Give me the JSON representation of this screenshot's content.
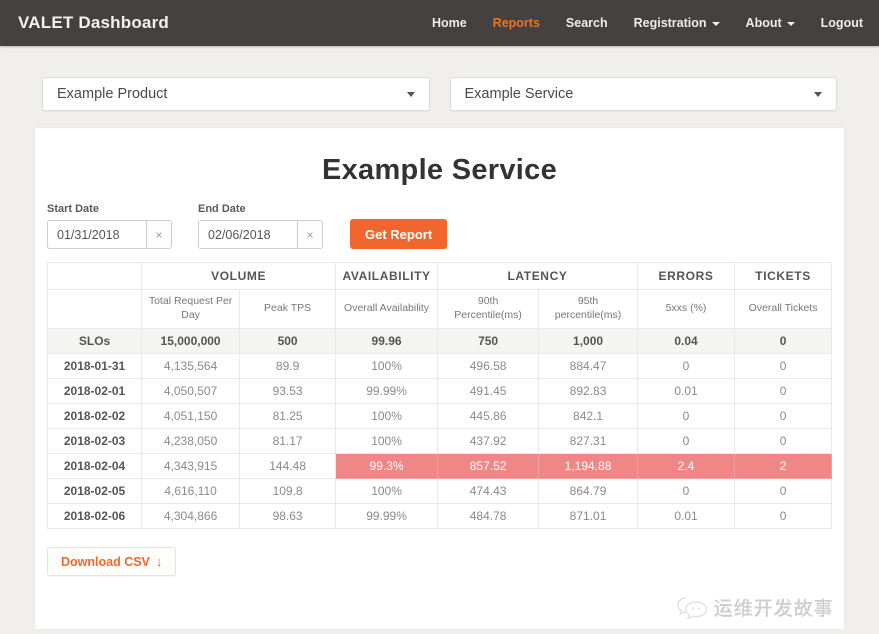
{
  "navbar": {
    "brand": "VALET Dashboard",
    "items": [
      {
        "label": "Home",
        "active": false,
        "caret": false
      },
      {
        "label": "Reports",
        "active": true,
        "caret": false
      },
      {
        "label": "Search",
        "active": false,
        "caret": false
      },
      {
        "label": "Registration",
        "active": false,
        "caret": true
      },
      {
        "label": "About",
        "active": false,
        "caret": true
      },
      {
        "label": "Logout",
        "active": false,
        "caret": false
      }
    ]
  },
  "filters": {
    "product": "Example Product",
    "service": "Example Service"
  },
  "report": {
    "title": "Example Service",
    "start_date_label": "Start Date",
    "end_date_label": "End Date",
    "start_date": "01/31/2018",
    "end_date": "02/06/2018",
    "clear_symbol": "×",
    "get_report_label": "Get Report",
    "download_csv_label": "Download CSV",
    "download_arrow": "↓"
  },
  "table": {
    "groups": [
      {
        "label": "",
        "span": 1
      },
      {
        "label": "VOLUME",
        "span": 2
      },
      {
        "label": "AVAILABILITY",
        "span": 1
      },
      {
        "label": "LATENCY",
        "span": 2
      },
      {
        "label": "ERRORS",
        "span": 1
      },
      {
        "label": "TICKETS",
        "span": 1
      }
    ],
    "columns": [
      "",
      "Total Request Per Day",
      "Peak TPS",
      "Overall Availability",
      "90th Percentile(ms)",
      "95th percentile(ms)",
      "5xxs (%)",
      "Overall Tickets"
    ],
    "col_widths": [
      "12%",
      "12.5%",
      "12.25%",
      "13%",
      "12.9%",
      "12.6%",
      "12.4%",
      "12.35%"
    ],
    "rows": [
      {
        "label": "SLOs",
        "slo": true,
        "cells": [
          "15,000,000",
          "500",
          "99.96",
          "750",
          "1,000",
          "0.04",
          "0"
        ]
      },
      {
        "label": "2018-01-31",
        "slo": false,
        "cells": [
          "4,135,564",
          "89.9",
          "100%",
          "496.58",
          "884.47",
          "0",
          "0"
        ]
      },
      {
        "label": "2018-02-01",
        "slo": false,
        "cells": [
          "4,050,507",
          "93.53",
          "99.99%",
          "491.45",
          "892.83",
          "0.01",
          "0"
        ]
      },
      {
        "label": "2018-02-02",
        "slo": false,
        "cells": [
          "4,051,150",
          "81.25",
          "100%",
          "445.86",
          "842.1",
          "0",
          "0"
        ]
      },
      {
        "label": "2018-02-03",
        "slo": false,
        "cells": [
          "4,238,050",
          "81.17",
          "100%",
          "437.92",
          "827.31",
          "0",
          "0"
        ]
      },
      {
        "label": "2018-02-04",
        "slo": false,
        "alert_from": 2,
        "cells": [
          "4,343,915",
          "144.48",
          "99.3%",
          "857.52",
          "1,194.88",
          "2.4",
          "2"
        ]
      },
      {
        "label": "2018-02-05",
        "slo": false,
        "cells": [
          "4,616,110",
          "109.8",
          "100%",
          "474.43",
          "864.79",
          "0",
          "0"
        ]
      },
      {
        "label": "2018-02-06",
        "slo": false,
        "cells": [
          "4,304,866",
          "98.63",
          "99.99%",
          "484.78",
          "871.01",
          "0.01",
          "0"
        ]
      }
    ]
  },
  "watermark": {
    "text": "运维开发故事"
  },
  "colors": {
    "accent": "#ee672c",
    "alert": "#f08787",
    "navbar": "#454140"
  }
}
